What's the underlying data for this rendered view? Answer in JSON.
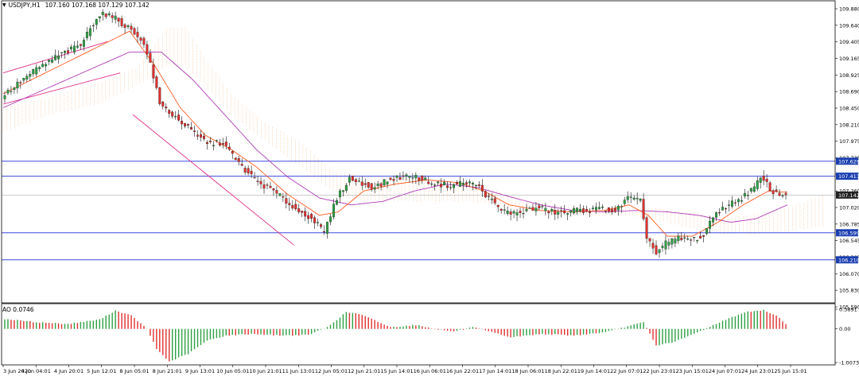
{
  "symbol": "USDJPY,H1",
  "ohlc_label": "107.160 107.168 107.129 107.142",
  "osc_label": "AO 0.0746",
  "colors": {
    "bull": "#2ea043",
    "bear": "#e0302e",
    "ma_fast": "#ff5a1f",
    "ma_slow": "#b03ab8",
    "ichimoku": "#f4a460",
    "level": "#1f2dd6",
    "level_label_bg": "#1a3fb0",
    "price_label_bg": "#222222"
  },
  "chart_data": [
    {
      "type": "candlestick",
      "name": "USDJPY,H1",
      "y_ticks": [
        "109.880",
        "109.640",
        "109.405",
        "109.165",
        "108.925",
        "108.690",
        "108.450",
        "108.210",
        "107.975",
        "107.735",
        "107.500",
        "107.260",
        "107.020",
        "106.785",
        "106.545",
        "106.305",
        "106.070",
        "105.830",
        "105.590"
      ],
      "ylim": [
        105.59,
        109.88
      ],
      "x_ticks": [
        "3 Jun 2020",
        "4 Jun 04:01",
        "4 Jun 20:01",
        "5 Jun 12:01",
        "8 Jun 05:01",
        "8 Jun 21:01",
        "9 Jun 13:01",
        "10 Jun 05:01",
        "10 Jun 21:01",
        "11 Jun 13:01",
        "12 Jun 05:01",
        "12 Jun 21:01",
        "15 Jun 14:01",
        "16 Jun 06:01",
        "16 Jun 22:01",
        "17 Jun 14:01",
        "18 Jun 06:01",
        "18 Jun 22:01",
        "19 Jun 14:01",
        "22 Jun 07:01",
        "22 Jun 23:01",
        "23 Jun 15:01",
        "24 Jun 07:01",
        "24 Jun 23:01",
        "25 Jun 15:01"
      ],
      "price_path": [
        [
          0,
          108.55
        ],
        [
          10,
          108.92
        ],
        [
          18,
          109.15
        ],
        [
          25,
          109.3
        ],
        [
          30,
          109.7
        ],
        [
          32,
          109.76
        ],
        [
          36,
          109.68
        ],
        [
          40,
          109.55
        ],
        [
          44,
          109.4
        ],
        [
          47,
          109.05
        ],
        [
          50,
          108.45
        ],
        [
          54,
          108.3
        ],
        [
          58,
          108.15
        ],
        [
          62,
          107.98
        ],
        [
          66,
          107.88
        ],
        [
          70,
          107.9
        ],
        [
          74,
          107.65
        ],
        [
          78,
          107.45
        ],
        [
          82,
          107.3
        ],
        [
          86,
          107.2
        ],
        [
          90,
          107.05
        ],
        [
          94,
          106.9
        ],
        [
          98,
          106.82
        ],
        [
          102,
          106.6
        ],
        [
          106,
          107.1
        ],
        [
          110,
          107.38
        ],
        [
          114,
          107.3
        ],
        [
          118,
          107.25
        ],
        [
          122,
          107.35
        ],
        [
          126,
          107.4
        ],
        [
          130,
          107.42
        ],
        [
          134,
          107.35
        ],
        [
          138,
          107.3
        ],
        [
          142,
          107.28
        ],
        [
          146,
          107.32
        ],
        [
          150,
          107.3
        ],
        [
          154,
          107.1
        ],
        [
          158,
          106.92
        ],
        [
          162,
          106.88
        ],
        [
          166,
          106.92
        ],
        [
          170,
          106.96
        ],
        [
          174,
          106.9
        ],
        [
          178,
          106.88
        ],
        [
          182,
          106.93
        ],
        [
          186,
          106.92
        ],
        [
          190,
          106.95
        ],
        [
          194,
          106.9
        ],
        [
          198,
          107.1
        ],
        [
          202,
          107.05
        ],
        [
          204,
          106.55
        ],
        [
          207,
          106.3
        ],
        [
          210,
          106.45
        ],
        [
          214,
          106.52
        ],
        [
          218,
          106.5
        ],
        [
          222,
          106.55
        ],
        [
          226,
          106.9
        ],
        [
          230,
          107.0
        ],
        [
          234,
          107.1
        ],
        [
          238,
          107.25
        ],
        [
          240,
          107.38
        ],
        [
          242,
          107.3
        ],
        [
          244,
          107.18
        ],
        [
          246,
          107.15
        ],
        [
          248,
          107.142
        ]
      ],
      "ma_fast": [
        [
          0,
          108.6
        ],
        [
          20,
          109.05
        ],
        [
          40,
          109.5
        ],
        [
          48,
          109.0
        ],
        [
          56,
          108.4
        ],
        [
          64,
          108.0
        ],
        [
          72,
          107.8
        ],
        [
          80,
          107.55
        ],
        [
          90,
          107.15
        ],
        [
          100,
          106.85
        ],
        [
          106,
          106.9
        ],
        [
          114,
          107.2
        ],
        [
          124,
          107.3
        ],
        [
          134,
          107.36
        ],
        [
          144,
          107.32
        ],
        [
          152,
          107.2
        ],
        [
          160,
          107.0
        ],
        [
          170,
          106.92
        ],
        [
          180,
          106.9
        ],
        [
          190,
          106.92
        ],
        [
          198,
          107.0
        ],
        [
          204,
          106.85
        ],
        [
          210,
          106.55
        ],
        [
          218,
          106.55
        ],
        [
          226,
          106.75
        ],
        [
          234,
          107.0
        ],
        [
          242,
          107.2
        ],
        [
          248,
          107.18
        ]
      ],
      "ma_slow": [
        [
          0,
          108.4
        ],
        [
          20,
          108.8
        ],
        [
          40,
          109.2
        ],
        [
          50,
          109.2
        ],
        [
          60,
          108.8
        ],
        [
          70,
          108.3
        ],
        [
          80,
          107.8
        ],
        [
          90,
          107.4
        ],
        [
          100,
          107.1
        ],
        [
          110,
          107.0
        ],
        [
          120,
          107.05
        ],
        [
          130,
          107.2
        ],
        [
          140,
          107.3
        ],
        [
          150,
          107.25
        ],
        [
          160,
          107.12
        ],
        [
          170,
          107.0
        ],
        [
          180,
          106.92
        ],
        [
          190,
          106.9
        ],
        [
          200,
          106.92
        ],
        [
          210,
          106.9
        ],
        [
          220,
          106.85
        ],
        [
          230,
          106.75
        ],
        [
          238,
          106.8
        ],
        [
          244,
          106.92
        ],
        [
          248,
          107.0
        ]
      ],
      "cloud_upper": [
        [
          0,
          108.4
        ],
        [
          15,
          108.55
        ],
        [
          30,
          108.75
        ],
        [
          42,
          108.95
        ],
        [
          52,
          109.55
        ],
        [
          58,
          109.55
        ],
        [
          64,
          109.1
        ],
        [
          72,
          108.6
        ],
        [
          82,
          108.2
        ],
        [
          94,
          107.9
        ],
        [
          104,
          107.5
        ],
        [
          114,
          107.4
        ],
        [
          126,
          107.4
        ],
        [
          138,
          107.35
        ],
        [
          148,
          107.3
        ],
        [
          156,
          107.2
        ],
        [
          166,
          107.05
        ],
        [
          176,
          106.98
        ],
        [
          186,
          106.95
        ],
        [
          196,
          106.95
        ],
        [
          206,
          106.95
        ],
        [
          214,
          106.9
        ],
        [
          222,
          106.85
        ],
        [
          228,
          106.82
        ],
        [
          238,
          106.85
        ],
        [
          248,
          106.95
        ],
        [
          260,
          107.15
        ]
      ],
      "cloud_lower": [
        [
          0,
          108.05
        ],
        [
          15,
          108.3
        ],
        [
          30,
          108.45
        ],
        [
          42,
          108.7
        ],
        [
          52,
          109.0
        ],
        [
          58,
          109.0
        ],
        [
          64,
          108.7
        ],
        [
          72,
          108.3
        ],
        [
          82,
          107.95
        ],
        [
          94,
          107.55
        ],
        [
          104,
          107.2
        ],
        [
          114,
          107.05
        ],
        [
          126,
          107.05
        ],
        [
          138,
          107.05
        ],
        [
          148,
          107.05
        ],
        [
          156,
          107.0
        ],
        [
          166,
          106.9
        ],
        [
          176,
          106.85
        ],
        [
          186,
          106.85
        ],
        [
          196,
          106.85
        ],
        [
          206,
          106.8
        ],
        [
          214,
          106.7
        ],
        [
          222,
          106.62
        ],
        [
          228,
          106.58
        ],
        [
          238,
          106.58
        ],
        [
          248,
          106.62
        ],
        [
          260,
          106.7
        ]
      ],
      "levels": [
        {
          "value": 107.629,
          "label": "107.629"
        },
        {
          "value": 107.413,
          "label": "107.413"
        },
        {
          "value": 106.599,
          "label": "106.599"
        },
        {
          "value": 106.21,
          "label": "106.210"
        }
      ],
      "current_price": {
        "value": 107.142,
        "label": "107.142"
      },
      "trend_lines": [
        {
          "from": [
            0,
            108.9
          ],
          "to": [
            33,
            109.35
          ]
        },
        {
          "from": [
            0,
            108.45
          ],
          "to": [
            37,
            108.9
          ]
        },
        {
          "from": [
            41,
            108.3
          ],
          "to": [
            92,
            106.42
          ]
        }
      ]
    },
    {
      "type": "bar",
      "name": "AO",
      "y_ticks": [
        "0.5891",
        "0.00",
        "-1.0073"
      ],
      "ylim": [
        -1.0073,
        0.5891
      ],
      "ao_path": [
        [
          0,
          0.3
        ],
        [
          10,
          0.2
        ],
        [
          20,
          0.15
        ],
        [
          30,
          0.28
        ],
        [
          35,
          0.55
        ],
        [
          40,
          0.4
        ],
        [
          45,
          0.0
        ],
        [
          48,
          -0.6
        ],
        [
          52,
          -0.98
        ],
        [
          58,
          -0.75
        ],
        [
          64,
          -0.35
        ],
        [
          70,
          -0.2
        ],
        [
          78,
          -0.15
        ],
        [
          88,
          -0.2
        ],
        [
          96,
          -0.18
        ],
        [
          102,
          0.05
        ],
        [
          108,
          0.5
        ],
        [
          112,
          0.45
        ],
        [
          116,
          0.3
        ],
        [
          122,
          0.05
        ],
        [
          130,
          0.12
        ],
        [
          136,
          0.0
        ],
        [
          142,
          -0.08
        ],
        [
          148,
          0.05
        ],
        [
          154,
          -0.1
        ],
        [
          160,
          -0.25
        ],
        [
          170,
          -0.15
        ],
        [
          180,
          -0.2
        ],
        [
          190,
          -0.1
        ],
        [
          196,
          0.05
        ],
        [
          202,
          0.2
        ],
        [
          206,
          -0.5
        ],
        [
          212,
          -0.38
        ],
        [
          218,
          -0.15
        ],
        [
          226,
          0.2
        ],
        [
          234,
          0.5
        ],
        [
          240,
          0.56
        ],
        [
          244,
          0.4
        ],
        [
          248,
          0.0746
        ]
      ]
    }
  ]
}
